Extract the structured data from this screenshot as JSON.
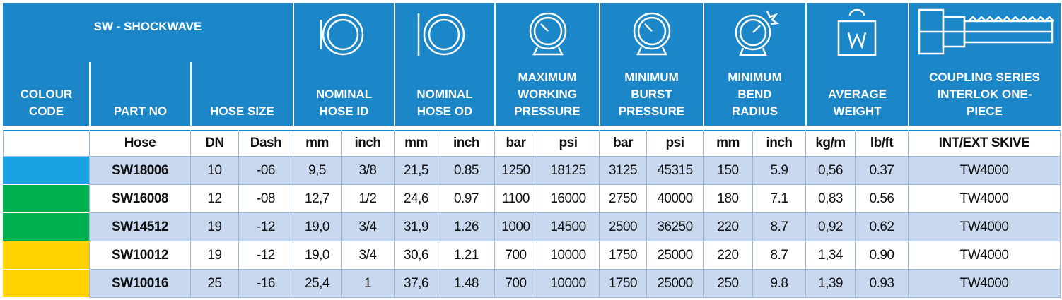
{
  "header": {
    "title": "SW - SHOCKWAVE"
  },
  "columns": [
    {
      "label": "COLOUR CODE"
    },
    {
      "label": "PART NO"
    },
    {
      "label": "HOSE SIZE"
    },
    {
      "label": "NOMINAL HOSE ID"
    },
    {
      "label": "NOMINAL HOSE OD"
    },
    {
      "label": "MAXIMUM WORKING PRESSURE"
    },
    {
      "label": "MINIMUM BURST PRESSURE"
    },
    {
      "label": "MINIMUM BEND RADIUS"
    },
    {
      "label": "AVERAGE WEIGHT"
    },
    {
      "label": "COUPLING SERIES INTERLOK ONE-PIECE"
    }
  ],
  "subheaders": [
    "Hose",
    "DN",
    "Dash",
    "mm",
    "inch",
    "mm",
    "inch",
    "bar",
    "psi",
    "bar",
    "psi",
    "mm",
    "inch",
    "kg/m",
    "lb/ft",
    "INT/EXT SKIVE"
  ],
  "rows": [
    {
      "colour": "#19a3e2",
      "cells": [
        "SW18006",
        "10",
        "-06",
        "9,5",
        "3/8",
        "21,5",
        "0.85",
        "1250",
        "18125",
        "3125",
        "45315",
        "150",
        "5.9",
        "0,56",
        "0.37",
        "TW4000"
      ]
    },
    {
      "colour": "#00b04f",
      "cells": [
        "SW16008",
        "12",
        "-08",
        "12,7",
        "1/2",
        "24,6",
        "0.97",
        "1100",
        "16000",
        "2750",
        "40000",
        "180",
        "7.1",
        "0,83",
        "0.56",
        "TW4000"
      ]
    },
    {
      "colour": "#00b04f",
      "cells": [
        "SW14512",
        "19",
        "-12",
        "19,0",
        "3/4",
        "31,9",
        "1.26",
        "1000",
        "14500",
        "2500",
        "36250",
        "220",
        "8.7",
        "0,92",
        "0.62",
        "TW4000"
      ]
    },
    {
      "colour": "#ffd200",
      "cells": [
        "SW10012",
        "19",
        "-12",
        "19,0",
        "3/4",
        "30,6",
        "1.21",
        "700",
        "10000",
        "1750",
        "25000",
        "220",
        "8.7",
        "1,34",
        "0.90",
        "TW4000"
      ]
    },
    {
      "colour": "#ffd200",
      "cells": [
        "SW10016",
        "25",
        "-16",
        "25,4",
        "1",
        "37,6",
        "1.48",
        "700",
        "10000",
        "1750",
        "25000",
        "250",
        "9.8",
        "1,39",
        "0.93",
        "TW4000"
      ]
    }
  ]
}
